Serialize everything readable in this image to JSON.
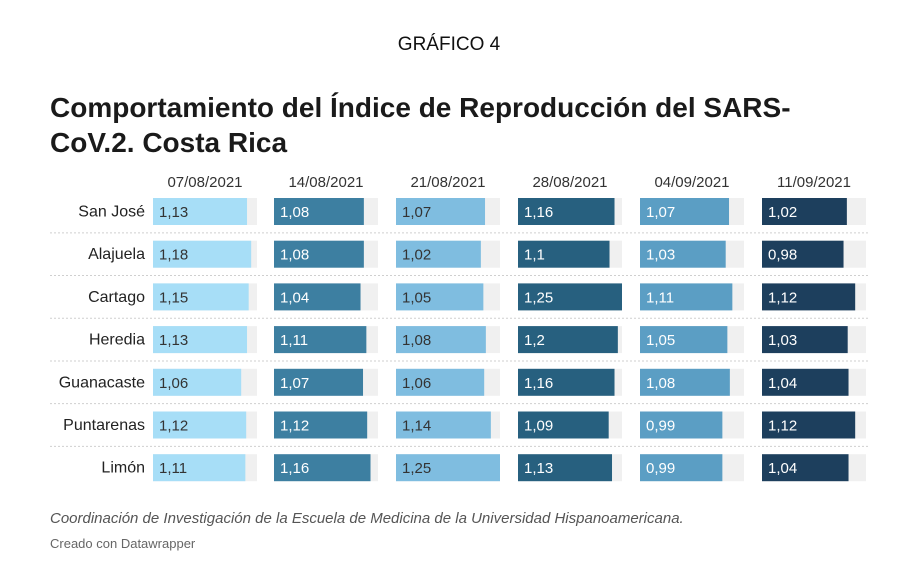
{
  "header": {
    "overline": "GRÁFICO 4",
    "title": "Comportamiento del Índice de Reproducción del SARS-CoV.2. Costa Rica"
  },
  "footer": {
    "note": "Coordinación de Investigación de la Escuela de Medicina de la Universidad Hispanoamericana.",
    "credit": "Creado con Datawrapper"
  },
  "chart_data": {
    "type": "table",
    "columns": [
      "07/08/2021",
      "14/08/2021",
      "21/08/2021",
      "28/08/2021",
      "04/09/2021",
      "11/09/2021"
    ],
    "column_colors": [
      "#a7def7",
      "#3d7fa1",
      "#7fbde0",
      "#27607f",
      "#5b9ec4",
      "#1d3f5d"
    ],
    "label_colors": [
      "#333333",
      "#ffffff",
      "#333333",
      "#ffffff",
      "#ffffff",
      "#ffffff"
    ],
    "scale_max": 1.25,
    "rows": [
      {
        "label": "San José",
        "values": [
          "1,13",
          "1,08",
          "1,07",
          "1,16",
          "1,07",
          "1,02"
        ]
      },
      {
        "label": "Alajuela",
        "values": [
          "1,18",
          "1,08",
          "1,02",
          "1,1",
          "1,03",
          "0,98"
        ]
      },
      {
        "label": "Cartago",
        "values": [
          "1,15",
          "1,04",
          "1,05",
          "1,25",
          "1,11",
          "1,12"
        ]
      },
      {
        "label": "Heredia",
        "values": [
          "1,13",
          "1,11",
          "1,08",
          "1,2",
          "1,05",
          "1,03"
        ]
      },
      {
        "label": "Guanacaste",
        "values": [
          "1,06",
          "1,07",
          "1,06",
          "1,16",
          "1,08",
          "1,04"
        ]
      },
      {
        "label": "Puntarenas",
        "values": [
          "1,12",
          "1,12",
          "1,14",
          "1,09",
          "0,99",
          "1,12"
        ]
      },
      {
        "label": "Limón",
        "values": [
          "1,11",
          "1,16",
          "1,25",
          "1,13",
          "0,99",
          "1,04"
        ]
      }
    ]
  }
}
